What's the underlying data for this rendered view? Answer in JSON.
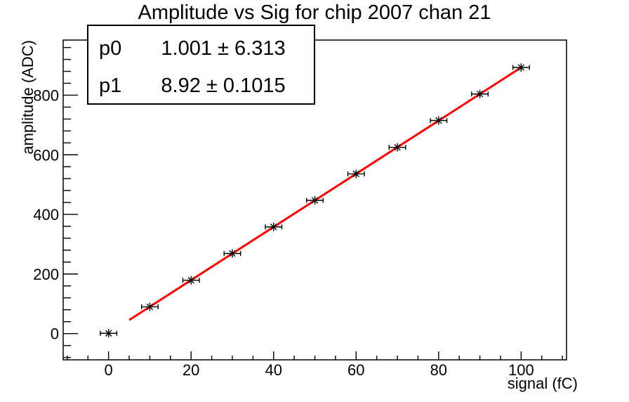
{
  "chart_data": {
    "type": "scatter",
    "title": "Amplitude vs Sig for chip 2007 chan 21",
    "xlabel": "signal (fC)",
    "ylabel": "amplitude (ADC)",
    "xlim": [
      -11,
      111
    ],
    "ylim": [
      -88,
      985
    ],
    "x_major_ticks": [
      0,
      20,
      40,
      60,
      80,
      100
    ],
    "x_minor_step": 5,
    "y_major_ticks": [
      0,
      200,
      400,
      600,
      800
    ],
    "y_minor_step": 40,
    "grid": false,
    "legend": "none",
    "series": [
      {
        "name": "measured amplitude points",
        "type": "scatter",
        "marker": "asterisk-with-x-error-bars",
        "color": "#000000",
        "x": [
          0,
          10,
          20,
          30,
          40,
          50,
          60,
          70,
          80,
          90,
          100
        ],
        "y": [
          1,
          90,
          179,
          269,
          358,
          447,
          536,
          625,
          715,
          804,
          893
        ],
        "xerr": 2
      },
      {
        "name": "linear fit",
        "type": "line",
        "color": "#ff0000",
        "x_range": [
          5,
          100
        ],
        "p0": 1.001,
        "p1": 8.92
      }
    ]
  },
  "stats_box": {
    "rows": [
      {
        "name": "p0",
        "display": "1.001 ± 6.313"
      },
      {
        "name": "p1",
        "display": "8.92 ± 0.1015"
      }
    ]
  },
  "colors": {
    "background": "#ffffff",
    "frame": "#000000",
    "fit_line": "#ff0000",
    "marker": "#000000"
  }
}
